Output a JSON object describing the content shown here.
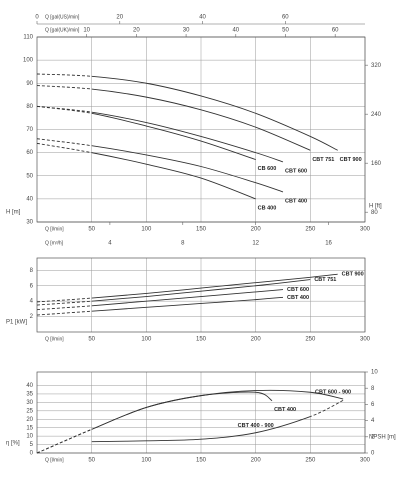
{
  "chart_data": [
    {
      "type": "line",
      "grid": true,
      "y_label": "H [m]",
      "ylim": [
        30,
        110
      ],
      "yticks": [
        30,
        40,
        50,
        60,
        70,
        80,
        90,
        100,
        110
      ],
      "y2_label": "H [ft]",
      "y2lim": [
        64,
        366
      ],
      "y2ticks": [
        80,
        160,
        240,
        320
      ],
      "x_axes": [
        {
          "label": "Q [l/min]",
          "position": "bottom",
          "xlim": [
            0,
            300
          ],
          "xticks": [
            50,
            100,
            150,
            200,
            250,
            300
          ]
        },
        {
          "label": "Q [m³/h]",
          "position": "bottom",
          "xlim": [
            0,
            18
          ],
          "xticks": [
            4,
            8,
            12,
            16
          ]
        },
        {
          "label": "Q [gal(US)/min]",
          "position": "top",
          "xlim": [
            0,
            79.25
          ],
          "xticks": [
            0,
            20,
            40,
            60
          ]
        },
        {
          "label": "Q [gal(UK)/min]",
          "position": "top",
          "xlim": [
            0,
            66
          ],
          "xticks": [
            10,
            20,
            30,
            40,
            50,
            60
          ]
        }
      ],
      "series": [
        {
          "name": "CBT 900",
          "color": "#333333",
          "label_position": "below",
          "dashed_x": [
            0,
            50
          ],
          "x": [
            0,
            50,
            100,
            150,
            200,
            250,
            275
          ],
          "values": [
            94,
            93,
            90,
            84.5,
            77,
            67,
            61
          ]
        },
        {
          "name": "CBT 751",
          "color": "#333333",
          "label_position": "below",
          "dashed_x": [
            0,
            50
          ],
          "x": [
            0,
            50,
            100,
            150,
            200,
            250
          ],
          "values": [
            89,
            87.5,
            84,
            78.5,
            71,
            61
          ]
        },
        {
          "name": "CBT 600",
          "color": "#333333",
          "label_position": "below",
          "dashed_x": [
            0,
            50
          ],
          "x": [
            0,
            50,
            100,
            150,
            200,
            225
          ],
          "values": [
            80,
            77.5,
            73,
            67,
            60,
            56
          ]
        },
        {
          "name": "CB 600",
          "color": "#333333",
          "label_position": "below",
          "dashed_x": [
            0,
            50
          ],
          "x": [
            0,
            50,
            100,
            150,
            200
          ],
          "values": [
            80,
            77,
            71.5,
            65,
            57
          ]
        },
        {
          "name": "CBT 400",
          "color": "#333333",
          "label_position": "below",
          "dashed_x": [
            0,
            50
          ],
          "x": [
            0,
            50,
            100,
            150,
            200,
            225
          ],
          "values": [
            66,
            63,
            59,
            54,
            47,
            43
          ]
        },
        {
          "name": "CB 400",
          "color": "#333333",
          "label_position": "below",
          "dashed_x": [
            0,
            50
          ],
          "x": [
            0,
            50,
            100,
            150,
            200
          ],
          "values": [
            64,
            60,
            55,
            49,
            40
          ]
        }
      ]
    },
    {
      "type": "line",
      "grid": true,
      "y_label": "P1 [kW]",
      "ylim": [
        0,
        9.6
      ],
      "yticks": [
        2,
        4,
        6,
        8
      ],
      "x_axes": [
        {
          "label": "Q [l/min]",
          "position": "bottom",
          "xlim": [
            0,
            300
          ],
          "xticks": [
            50,
            100,
            150,
            200,
            250,
            300
          ]
        }
      ],
      "series": [
        {
          "name": "CBT 900",
          "color": "#333333",
          "label_position": "right",
          "dashed_x": [
            0,
            50
          ],
          "x": [
            0,
            50,
            100,
            150,
            200,
            250,
            275
          ],
          "values": [
            3.9,
            4.4,
            5.0,
            5.7,
            6.4,
            7.1,
            7.5
          ]
        },
        {
          "name": "CBT 751",
          "color": "#333333",
          "label_position": "right",
          "dashed_x": [
            0,
            50
          ],
          "x": [
            0,
            50,
            100,
            150,
            200,
            250
          ],
          "values": [
            3.5,
            4.0,
            4.6,
            5.3,
            6.0,
            6.8
          ]
        },
        {
          "name": "CBT 600",
          "color": "#333333",
          "label_position": "right",
          "dashed_x": [
            0,
            50
          ],
          "x": [
            0,
            50,
            100,
            150,
            200,
            225
          ],
          "values": [
            2.9,
            3.4,
            4.0,
            4.6,
            5.2,
            5.5
          ]
        },
        {
          "name": "CBT 400",
          "color": "#333333",
          "label_position": "right",
          "dashed_x": [
            0,
            50
          ],
          "x": [
            0,
            50,
            100,
            150,
            200,
            225
          ],
          "values": [
            2.2,
            2.7,
            3.2,
            3.7,
            4.2,
            4.5
          ]
        }
      ]
    },
    {
      "type": "line",
      "grid": true,
      "y_label": "η [%]",
      "ylim": [
        0,
        48
      ],
      "yticks": [
        0,
        5,
        10,
        15,
        20,
        25,
        30,
        35,
        40
      ],
      "y2_label": "NPSH [m]",
      "y2lim": [
        0,
        10
      ],
      "y2ticks": [
        0,
        2,
        4,
        6,
        8,
        10
      ],
      "x_axes": [
        {
          "label": "Q [l/min]",
          "position": "bottom",
          "xlim": [
            0,
            300
          ],
          "xticks": [
            50,
            100,
            150,
            200,
            250,
            300
          ]
        }
      ],
      "series": [
        {
          "name": "CBT 600 - 900",
          "color": "#333333",
          "label_position": "above",
          "dashed_x": [
            0,
            50
          ],
          "x": [
            0,
            50,
            100,
            150,
            200,
            250,
            280
          ],
          "values": [
            0,
            14,
            27,
            34,
            37,
            36,
            32
          ]
        },
        {
          "name": "CBT 400",
          "color": "#333333",
          "label_position": "below",
          "dashed_x": [
            0,
            50
          ],
          "x": [
            0,
            50,
            100,
            150,
            200,
            215
          ],
          "values": [
            0,
            14,
            27,
            34,
            36,
            31
          ]
        },
        {
          "name": "CBT 400 - 900",
          "color": "#333333",
          "axis": "y2",
          "label_position": "middle",
          "dashed_x": [
            250,
            280
          ],
          "x": [
            50,
            100,
            150,
            200,
            250,
            280
          ],
          "values": [
            1.4,
            1.5,
            1.7,
            2.5,
            4.5,
            6.5
          ]
        }
      ]
    }
  ]
}
